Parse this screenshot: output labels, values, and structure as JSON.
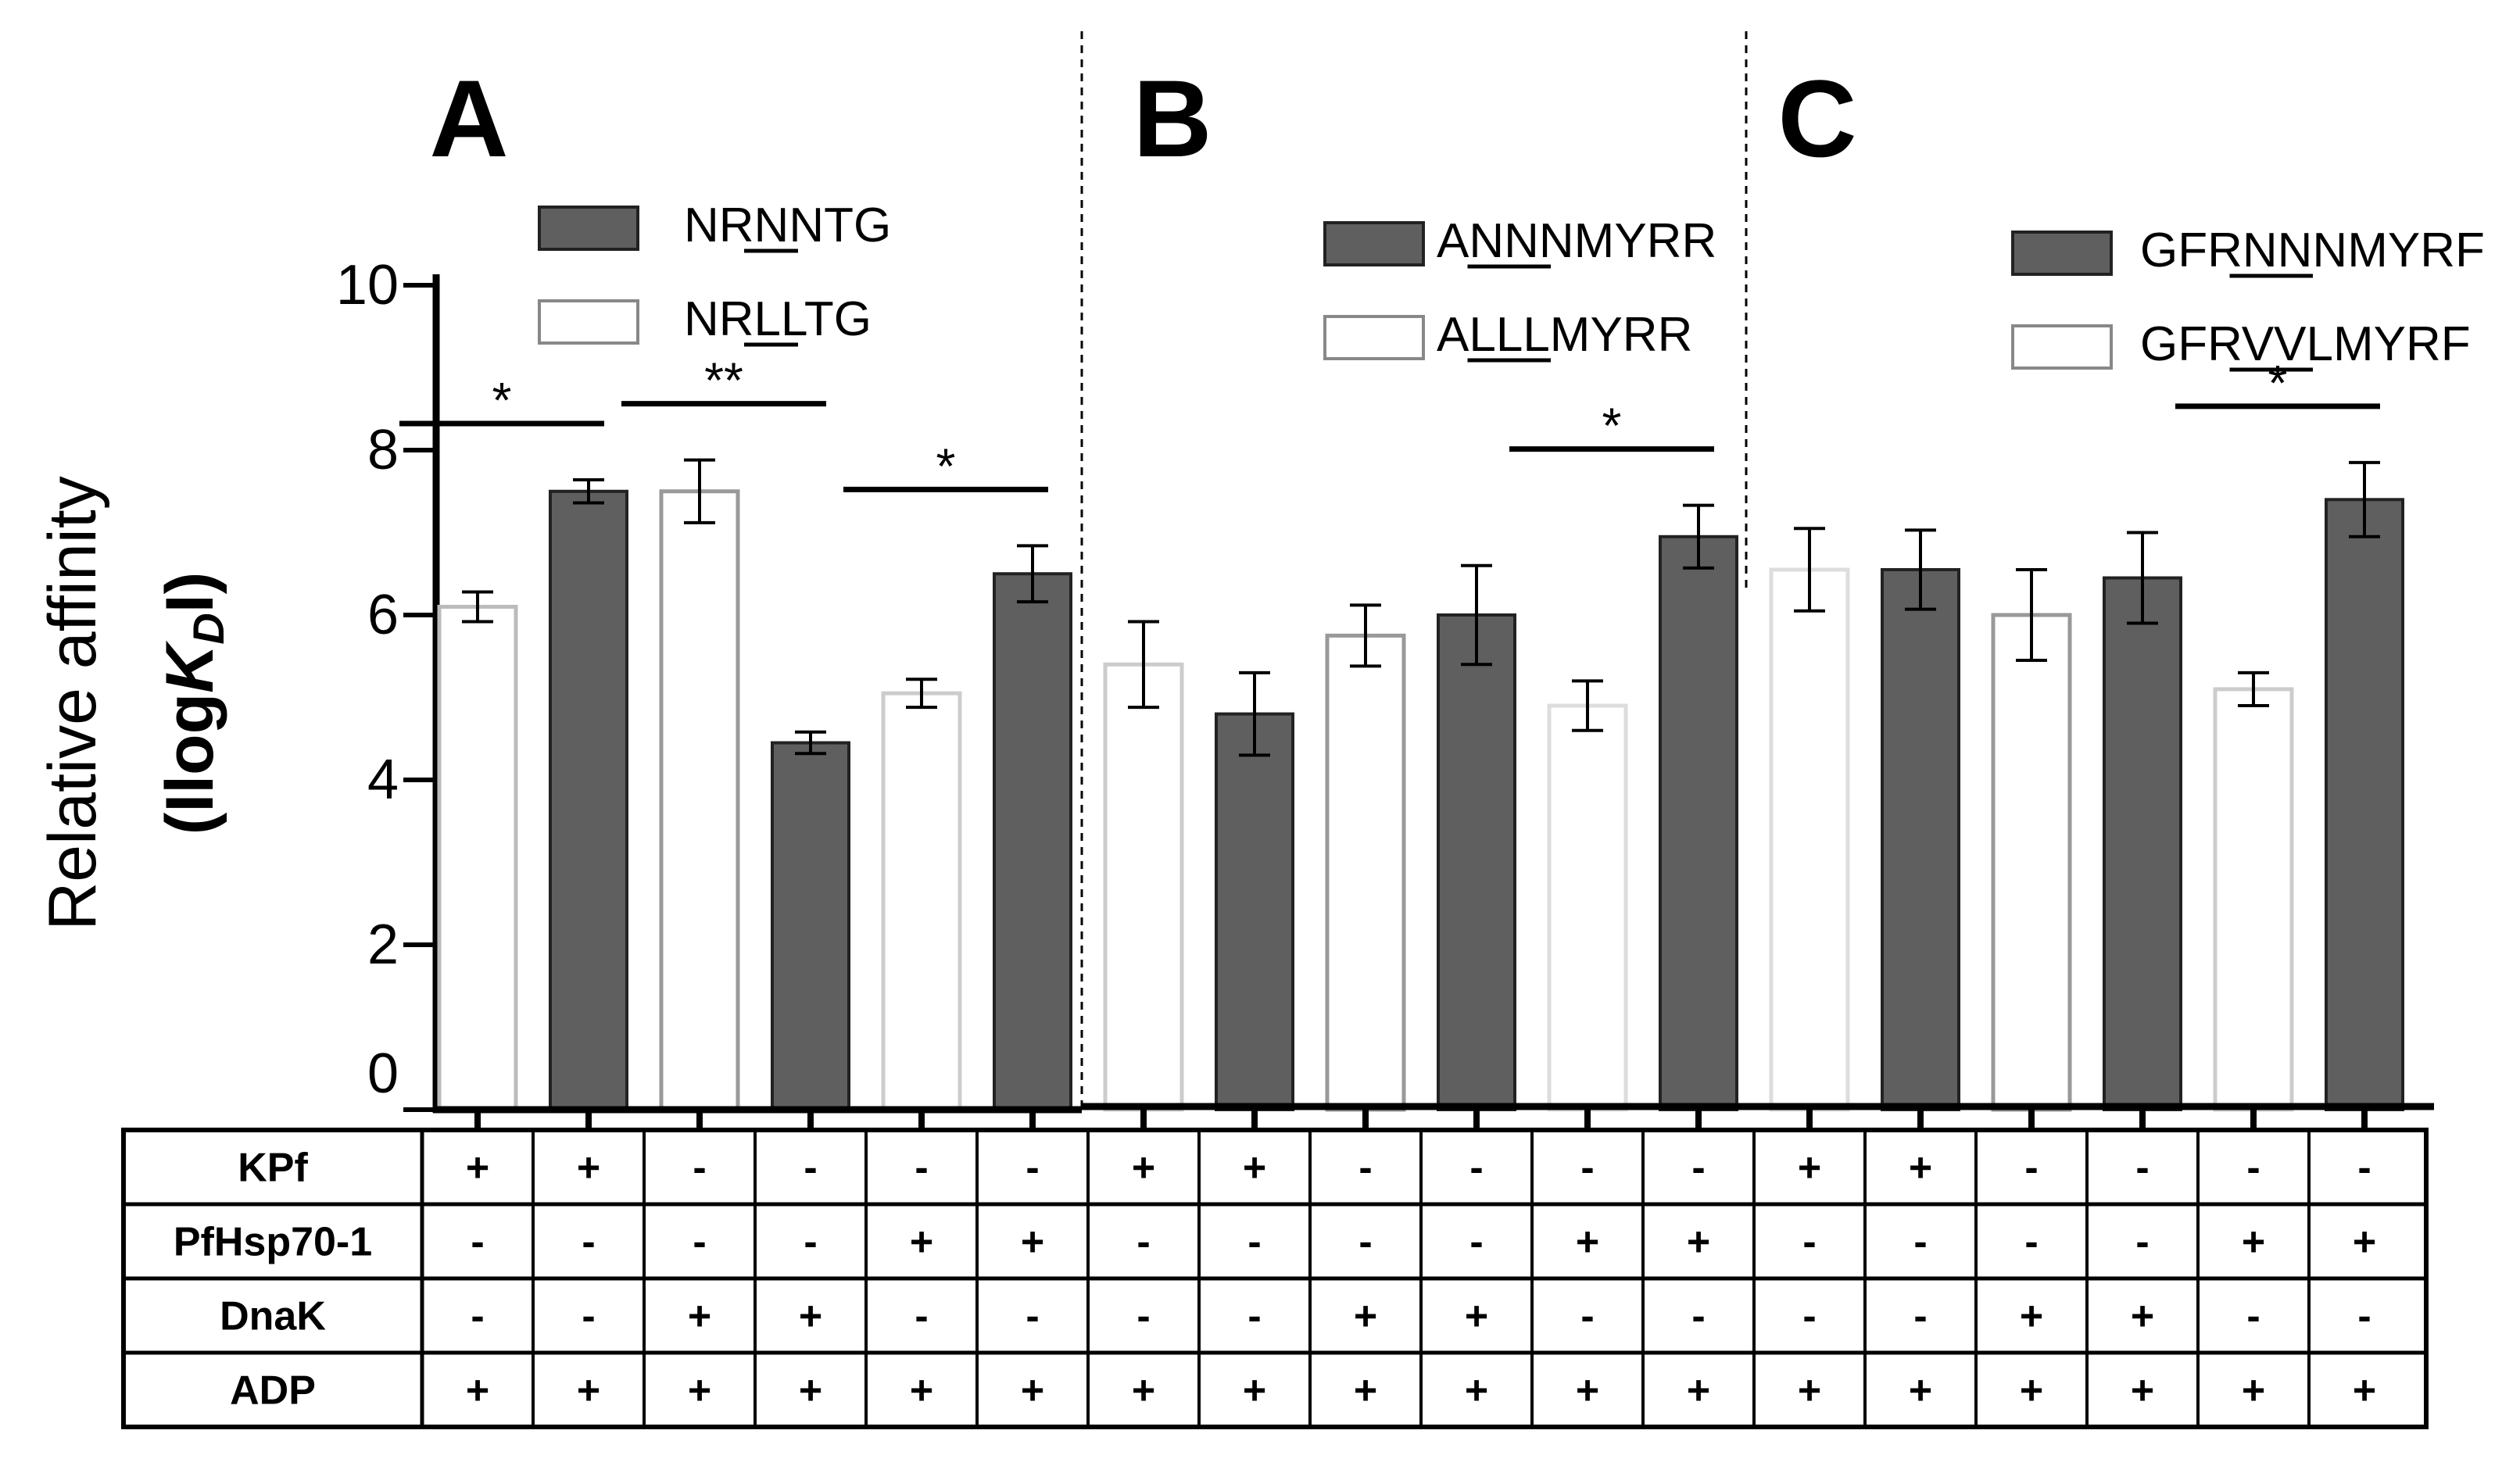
{
  "chart_data": {
    "type": "bar",
    "ylabel_line1": "Relative affinity",
    "ylabel_open": "(Ilog",
    "ylabel_k": "K",
    "ylabel_sub": "D",
    "ylabel_close": "I)",
    "ylim": [
      0,
      10
    ],
    "yticks": [
      "0",
      "2",
      "4",
      "6",
      "8",
      "10"
    ],
    "panels": [
      {
        "letter": "A",
        "legend": [
          {
            "label": "NRNNTG",
            "fill": "dark",
            "underline": [
              2,
              4
            ]
          },
          {
            "label": "NRLLTG",
            "fill": "white",
            "underline": [
              2,
              4
            ]
          }
        ],
        "bars": [
          {
            "value": 6.1,
            "error": 0.18,
            "fill": "white",
            "edge": "#bbbbbb"
          },
          {
            "value": 7.5,
            "error": 0.14,
            "fill": "dark",
            "edge": "#222222"
          },
          {
            "value": 7.5,
            "error": 0.38,
            "fill": "white",
            "edge": "#999999"
          },
          {
            "value": 4.45,
            "error": 0.13,
            "fill": "dark",
            "edge": "#222222"
          },
          {
            "value": 5.05,
            "error": 0.17,
            "fill": "white",
            "edge": "#cccccc"
          },
          {
            "value": 6.5,
            "error": 0.34,
            "fill": "dark",
            "edge": "#222222"
          }
        ],
        "significance": [
          {
            "label": "*",
            "from": 0,
            "to": 1
          },
          {
            "label": "**",
            "from": 2,
            "to": 3
          },
          {
            "label": "*",
            "from": 4,
            "to": 5
          }
        ]
      },
      {
        "letter": "B",
        "legend": [
          {
            "label": "ANNNMYRR",
            "fill": "dark",
            "underline": [
              1,
              4
            ]
          },
          {
            "label": "ALLLMYRR",
            "fill": "white",
            "underline": [
              1,
              4
            ]
          }
        ],
        "bars": [
          {
            "value": 5.4,
            "error": 0.52,
            "fill": "white",
            "edge": "#cccccc"
          },
          {
            "value": 4.8,
            "error": 0.5,
            "fill": "dark",
            "edge": "#222222"
          },
          {
            "value": 5.75,
            "error": 0.37,
            "fill": "white",
            "edge": "#999999"
          },
          {
            "value": 6.0,
            "error": 0.6,
            "fill": "dark",
            "edge": "#222222"
          },
          {
            "value": 4.9,
            "error": 0.3,
            "fill": "white",
            "edge": "#dddddd"
          },
          {
            "value": 6.95,
            "error": 0.38,
            "fill": "dark",
            "edge": "#222222"
          }
        ],
        "significance": [
          {
            "label": "*",
            "from": 4,
            "to": 5
          }
        ]
      },
      {
        "letter": "C",
        "legend": [
          {
            "label": "GFRNNNMYRF",
            "fill": "dark",
            "underline": [
              3,
              6
            ]
          },
          {
            "label": "GFRVVLMYRF",
            "fill": "white",
            "underline": [
              3,
              6
            ]
          }
        ],
        "bars": [
          {
            "value": 6.55,
            "error": 0.5,
            "fill": "white",
            "edge": "#dddddd"
          },
          {
            "value": 6.55,
            "error": 0.48,
            "fill": "dark",
            "edge": "#222222"
          },
          {
            "value": 6.0,
            "error": 0.55,
            "fill": "white",
            "edge": "#999999"
          },
          {
            "value": 6.45,
            "error": 0.55,
            "fill": "dark",
            "edge": "#222222"
          },
          {
            "value": 5.1,
            "error": 0.2,
            "fill": "white",
            "edge": "#cccccc"
          },
          {
            "value": 7.4,
            "error": 0.45,
            "fill": "dark",
            "edge": "#222222"
          }
        ],
        "significance": [
          {
            "label": "*",
            "from": 4,
            "to": 5
          }
        ]
      }
    ],
    "table": {
      "rows": [
        {
          "label": "KPf",
          "values": [
            "+",
            "+",
            "-",
            "-",
            "-",
            "-",
            "+",
            "+",
            "-",
            "-",
            "-",
            "-",
            "+",
            "+",
            "-",
            "-",
            "-",
            "-"
          ]
        },
        {
          "label": "PfHsp70-1",
          "values": [
            "-",
            "-",
            "-",
            "-",
            "+",
            "+",
            "-",
            "-",
            "-",
            "-",
            "+",
            "+",
            "-",
            "-",
            "-",
            "-",
            "+",
            "+"
          ]
        },
        {
          "label": "DnaK",
          "values": [
            "-",
            "-",
            "+",
            "+",
            "-",
            "-",
            "-",
            "-",
            "+",
            "+",
            "-",
            "-",
            "-",
            "-",
            "+",
            "+",
            "-",
            "-"
          ]
        },
        {
          "label": "ADP",
          "values": [
            "+",
            "+",
            "+",
            "+",
            "+",
            "+",
            "+",
            "+",
            "+",
            "+",
            "+",
            "+",
            "+",
            "+",
            "+",
            "+",
            "+",
            "+"
          ]
        }
      ]
    },
    "colors": {
      "dark_bar": "#5f5f5f",
      "white_bar": "#ffffff",
      "axis": "#000000"
    }
  }
}
